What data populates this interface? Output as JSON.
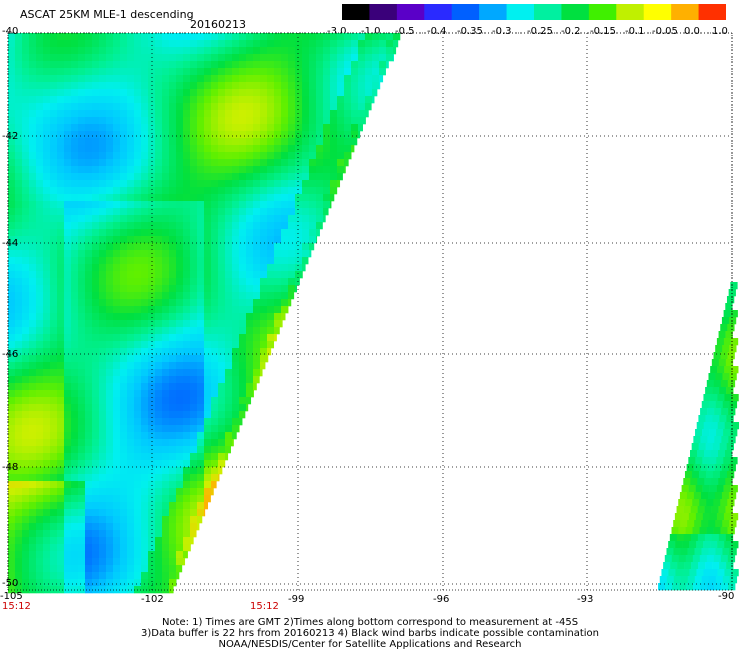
{
  "header": {
    "title": "ASCAT 25KM MLE-1 descending",
    "date": "20160213"
  },
  "colorbar": {
    "labels": [
      "-3.0",
      "-1.0",
      "-0.5",
      "-0.4",
      "-0.35",
      "-0.3",
      "-0.25",
      "-0.2",
      "-0.15",
      "-0.1",
      "-0.05",
      "0.0",
      "1.0"
    ],
    "colors": [
      "#000000",
      "#3a007a",
      "#5a00c8",
      "#2a2aff",
      "#0060ff",
      "#00a8ff",
      "#00f0f0",
      "#00f0a0",
      "#00e040",
      "#40f000",
      "#c0f000",
      "#ffff00",
      "#ffb000",
      "#ff3000"
    ]
  },
  "map": {
    "lon_range": [
      -105,
      -90
    ],
    "lat_range": [
      -50,
      -40
    ],
    "x_ticks": [
      "-105",
      "-102",
      "-99",
      "-96",
      "-93",
      "-90"
    ],
    "y_ticks": [
      "-40",
      "-42",
      "-44",
      "-46",
      "-48",
      "-50"
    ],
    "grid": "dotted"
  },
  "times": [
    "15:12",
    "15:12"
  ],
  "notes": [
    "Note: 1) Times are GMT 2)Times along bottom correspond to measurement at -45S",
    "3)Data buffer is 22 hrs from 20160213 4) Black wind barbs indicate possible contamination",
    "NOAA/NESDIS/Center for Satellite Applications and Research"
  ]
}
